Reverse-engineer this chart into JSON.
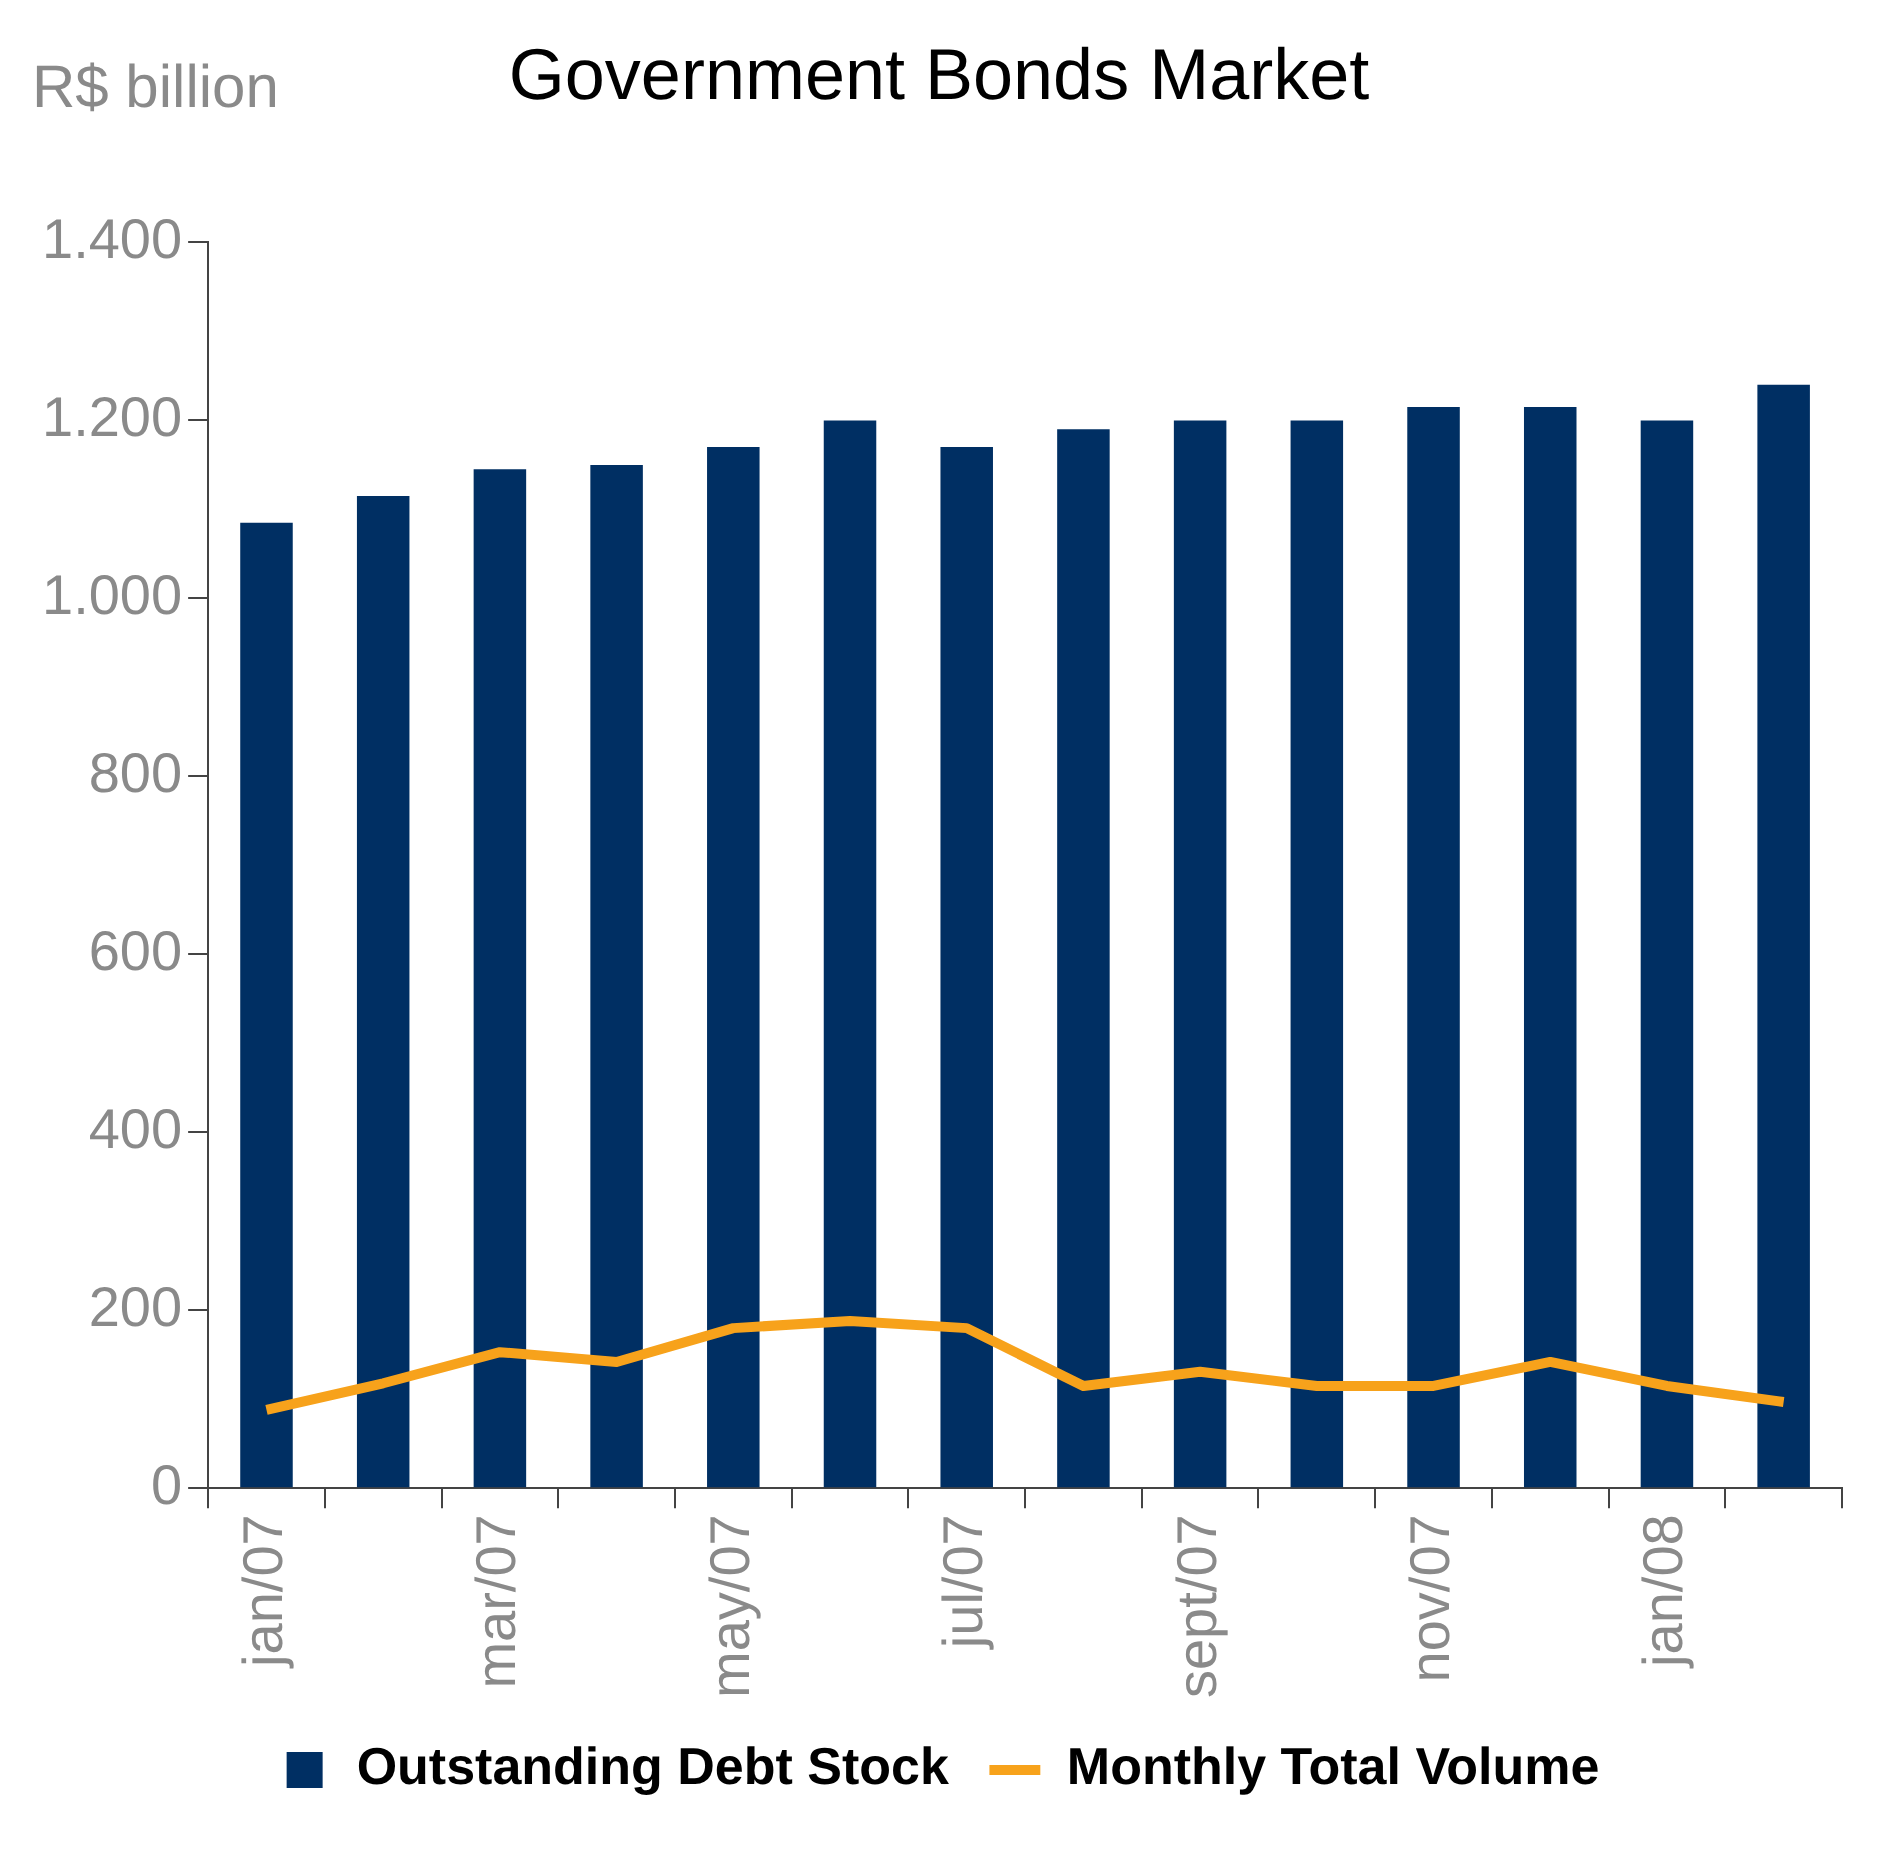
{
  "chart_data": {
    "type": "bar",
    "title": "Government Bonds Market",
    "ylabel": "R$ billion",
    "categories": [
      "jan/07",
      null,
      "mar/07",
      null,
      "may/07",
      null,
      "jul/07",
      null,
      "sept/07",
      null,
      "nov/07",
      null,
      "jan/08",
      null
    ],
    "series": [
      {
        "name": "Outstanding Debt Stock",
        "color": "#002f63",
        "values": [
          1085,
          1115,
          1145,
          1150,
          1170,
          1200,
          1170,
          1190,
          1200,
          1200,
          1215,
          1215,
          1200,
          1240
        ]
      },
      {
        "name": "Monthly Total Volume",
        "type": "line",
        "color": "#f7a21b",
        "values": [
          88,
          118,
          153,
          142,
          180,
          188,
          180,
          115,
          131,
          115,
          115,
          142,
          115,
          97
        ]
      }
    ],
    "ylim": [
      0,
      1400
    ],
    "yticks": [
      {
        "value": 0,
        "label": "0"
      },
      {
        "value": 200,
        "label": "200"
      },
      {
        "value": 400,
        "label": "400"
      },
      {
        "value": 600,
        "label": "600"
      },
      {
        "value": 800,
        "label": "800"
      },
      {
        "value": 1000,
        "label": "1.000"
      },
      {
        "value": 1200,
        "label": "1.200"
      },
      {
        "value": 1400,
        "label": "1.400"
      }
    ],
    "grid": false,
    "legend": "bottom",
    "marker": "none",
    "line_style": "solid"
  }
}
